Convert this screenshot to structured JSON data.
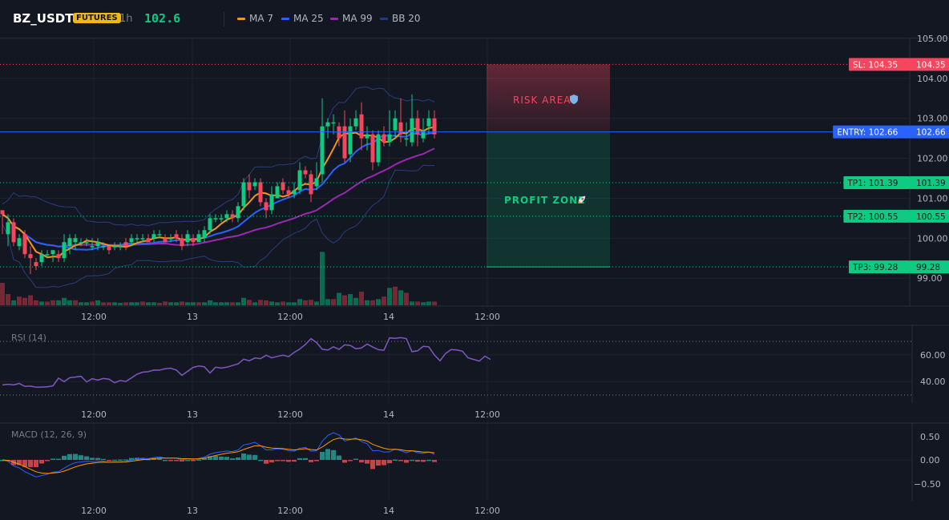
{
  "header": {
    "symbol": "BZ_USDT",
    "badge": "FUTURES",
    "timeframe": "1h",
    "price": "102.6",
    "legend": [
      {
        "label": "MA 7",
        "color": "#f7931a"
      },
      {
        "label": "MA 25",
        "color": "#2962ff"
      },
      {
        "label": "MA 99",
        "color": "#9c27b0"
      },
      {
        "label": "BB 20",
        "color": "#1e3a8a"
      }
    ]
  },
  "colors": {
    "up": "#0ecb81",
    "down": "#f6465d",
    "entry": "#2962ff",
    "sl": "#f6465d",
    "tp": "#0ecb81",
    "rsi": "#7e57c2",
    "macd": "#2962ff",
    "signal": "#ff9800"
  },
  "price_axis": {
    "ticks": [
      "105.00",
      "104.00",
      "103.00",
      "102.00",
      "101.00",
      "100.00",
      "99.00"
    ],
    "min": 98.3,
    "max": 105.0
  },
  "time_axis": [
    "12:00",
    "13",
    "12:00",
    "14",
    "12:00"
  ],
  "levels": {
    "sl": {
      "tag": "SL: 104.35",
      "value": "104.35",
      "price": 104.35
    },
    "entry": {
      "tag": "ENTRY: 102.66",
      "value": "102.66",
      "price": 102.66
    },
    "tp1": {
      "tag": "TP1: 101.39",
      "value": "101.39",
      "price": 101.39
    },
    "tp2": {
      "tag": "TP2: 100.55",
      "value": "100.55",
      "price": 100.55
    },
    "tp3": {
      "tag": "TP3: 99.28",
      "value": "99.28",
      "price": 99.28
    }
  },
  "zones": {
    "risk_label": "RISK AREA",
    "risk_icon": "shield-icon",
    "profit_label": "PROFIT ZONE",
    "profit_icon": "rocket-icon"
  },
  "rsi": {
    "label": "RSI (14)",
    "ticks": [
      "60.00",
      "40.00"
    ],
    "upper": 70,
    "lower": 30,
    "values": [
      37.5,
      38.0,
      37.5,
      38.6,
      36.4,
      36.6,
      35.8,
      35.9,
      36.1,
      36.8,
      42.6,
      39.9,
      42.9,
      43.4,
      44.0,
      39.8,
      42.1,
      41.1,
      42.3,
      41.8,
      39.1,
      40.8,
      40.1,
      42.8,
      45.5,
      47.0,
      47.4,
      48.6,
      48.5,
      49.6,
      50.0,
      48.6,
      44.7,
      47.6,
      50.6,
      51.6,
      51.0,
      46.4,
      50.7,
      50.1,
      50.7,
      52.0,
      53.2,
      56.7,
      55.5,
      57.6,
      57.1,
      59.7,
      57.7,
      58.8,
      59.7,
      58.6,
      61.7,
      64.3,
      67.7,
      72.1,
      69.1,
      64.1,
      63.5,
      65.9,
      64.0,
      67.4,
      67.0,
      64.5,
      65.1,
      68.0,
      65.8,
      63.8,
      63.4,
      72.6,
      72.3,
      72.8,
      72.0,
      62.3,
      63.0,
      66.3,
      66.0,
      59.8,
      55.6,
      61.0,
      63.9,
      63.6,
      62.6,
      57.7,
      56.5,
      55.3,
      59.0,
      56.5
    ]
  },
  "macd": {
    "label": "MACD (12, 26, 9)",
    "ticks": [
      "0.50",
      "0.00",
      "−0.50"
    ]
  },
  "candles": [
    [
      100.7,
      100.6,
      100.7,
      100.1
    ],
    [
      100.1,
      100.4,
      100.6,
      99.8
    ],
    [
      100.4,
      99.9,
      100.5,
      99.8
    ],
    [
      99.8,
      100.0,
      100.1,
      99.7
    ],
    [
      100.1,
      99.6,
      100.2,
      99.5
    ],
    [
      99.6,
      99.5,
      99.8,
      99.1
    ],
    [
      99.4,
      99.3,
      99.5,
      99.2
    ],
    [
      99.4,
      99.6,
      99.7,
      99.3
    ],
    [
      99.6,
      99.6,
      99.7,
      99.5
    ],
    [
      99.6,
      99.7,
      99.7,
      99.4
    ],
    [
      99.6,
      99.5,
      99.7,
      99.4
    ],
    [
      99.5,
      99.9,
      100.1,
      99.4
    ],
    [
      99.8,
      100.0,
      100.1,
      99.6
    ],
    [
      99.9,
      100.0,
      100.1,
      99.7
    ],
    [
      99.9,
      99.9,
      100.0,
      99.8
    ],
    [
      99.9,
      99.9,
      100.0,
      99.8
    ],
    [
      99.8,
      99.8,
      100.0,
      99.7
    ],
    [
      99.8,
      99.9,
      100.0,
      99.7
    ],
    [
      99.8,
      99.8,
      99.9,
      99.7
    ],
    [
      99.8,
      99.7,
      99.8,
      99.6
    ],
    [
      99.8,
      99.8,
      99.9,
      99.7
    ],
    [
      99.8,
      99.8,
      99.9,
      99.7
    ],
    [
      99.9,
      99.8,
      100.0,
      99.7
    ],
    [
      99.9,
      100.0,
      100.1,
      99.8
    ],
    [
      100.0,
      100.0,
      100.1,
      99.9
    ],
    [
      100.0,
      100.0,
      100.1,
      99.9
    ],
    [
      100.0,
      99.9,
      100.1,
      99.9
    ],
    [
      100.0,
      100.1,
      100.2,
      99.9
    ],
    [
      100.1,
      100.1,
      100.2,
      100.0
    ],
    [
      100.0,
      99.9,
      100.1,
      99.9
    ],
    [
      100.0,
      100.0,
      100.1,
      99.9
    ],
    [
      100.1,
      100.0,
      100.2,
      99.9
    ],
    [
      100.0,
      99.8,
      100.1,
      99.7
    ],
    [
      99.9,
      100.1,
      100.2,
      99.8
    ],
    [
      100.0,
      99.9,
      100.1,
      99.8
    ],
    [
      99.9,
      100.1,
      100.2,
      99.9
    ],
    [
      100.0,
      100.2,
      100.3,
      99.9
    ],
    [
      100.2,
      100.5,
      100.6,
      100.1
    ],
    [
      100.5,
      100.5,
      100.6,
      100.4
    ],
    [
      100.5,
      100.5,
      100.6,
      100.4
    ],
    [
      100.5,
      100.6,
      100.7,
      100.4
    ],
    [
      100.6,
      100.5,
      100.7,
      100.4
    ],
    [
      100.5,
      100.8,
      100.9,
      100.4
    ],
    [
      100.8,
      101.4,
      101.5,
      100.7
    ],
    [
      101.4,
      101.2,
      101.6,
      101.0
    ],
    [
      101.3,
      101.4,
      101.5,
      101.2
    ],
    [
      101.4,
      100.9,
      101.5,
      100.8
    ],
    [
      100.9,
      100.7,
      101.0,
      100.5
    ],
    [
      100.7,
      101.1,
      101.3,
      100.6
    ],
    [
      101.0,
      101.3,
      101.4,
      101.0
    ],
    [
      101.4,
      101.2,
      101.5,
      101.1
    ],
    [
      101.2,
      101.1,
      101.3,
      101.0
    ],
    [
      101.1,
      101.2,
      101.4,
      101.0
    ],
    [
      101.2,
      101.7,
      101.9,
      101.1
    ],
    [
      101.7,
      101.6,
      101.8,
      101.5
    ],
    [
      101.6,
      101.1,
      101.7,
      100.9
    ],
    [
      101.3,
      101.5,
      101.9,
      101.2
    ],
    [
      101.6,
      102.8,
      103.5,
      101.4
    ],
    [
      102.8,
      102.9,
      103.0,
      102.5
    ],
    [
      102.9,
      102.9,
      103.1,
      102.6
    ],
    [
      102.8,
      102.5,
      102.9,
      102.3
    ],
    [
      102.8,
      102.0,
      103.2,
      101.9
    ],
    [
      102.1,
      102.8,
      103.0,
      101.9
    ],
    [
      102.8,
      103.0,
      103.2,
      102.7
    ],
    [
      103.1,
      102.5,
      103.4,
      102.2
    ],
    [
      102.5,
      102.6,
      102.8,
      102.2
    ],
    [
      102.6,
      101.9,
      102.7,
      101.7
    ],
    [
      101.9,
      102.6,
      102.7,
      101.8
    ],
    [
      102.6,
      102.4,
      102.8,
      102.3
    ],
    [
      102.4,
      102.6,
      103.2,
      102.3
    ],
    [
      102.7,
      103.0,
      103.2,
      102.5
    ],
    [
      102.9,
      102.6,
      103.5,
      102.4
    ],
    [
      102.5,
      102.5,
      102.9,
      102.3
    ],
    [
      102.4,
      103.0,
      103.6,
      102.3
    ],
    [
      103.0,
      102.6,
      103.2,
      102.3
    ],
    [
      102.5,
      102.7,
      103.0,
      102.4
    ],
    [
      102.8,
      103.0,
      103.2,
      102.6
    ],
    [
      103.0,
      102.6,
      103.2,
      102.5
    ]
  ],
  "volume": [
    [
      "d",
      0.9
    ],
    [
      "d",
      0.45
    ],
    [
      "u",
      0.2
    ],
    [
      "d",
      0.35
    ],
    [
      "d",
      0.3
    ],
    [
      "d",
      0.4
    ],
    [
      "d",
      0.2
    ],
    [
      "u",
      0.15
    ],
    [
      "d",
      0.15
    ],
    [
      "d",
      0.2
    ],
    [
      "u",
      0.2
    ],
    [
      "u",
      0.3
    ],
    [
      "u",
      0.2
    ],
    [
      "d",
      0.2
    ],
    [
      "u",
      0.12
    ],
    [
      "u",
      0.12
    ],
    [
      "d",
      0.15
    ],
    [
      "u",
      0.2
    ],
    [
      "d",
      0.12
    ],
    [
      "d",
      0.12
    ],
    [
      "u",
      0.12
    ],
    [
      "u",
      0.1
    ],
    [
      "d",
      0.12
    ],
    [
      "u",
      0.12
    ],
    [
      "u",
      0.12
    ],
    [
      "d",
      0.15
    ],
    [
      "u",
      0.12
    ],
    [
      "u",
      0.12
    ],
    [
      "d",
      0.1
    ],
    [
      "d",
      0.15
    ],
    [
      "u",
      0.12
    ],
    [
      "u",
      0.12
    ],
    [
      "d",
      0.15
    ],
    [
      "u",
      0.12
    ],
    [
      "u",
      0.12
    ],
    [
      "d",
      0.12
    ],
    [
      "u",
      0.12
    ],
    [
      "u",
      0.2
    ],
    [
      "u",
      0.12
    ],
    [
      "u",
      0.12
    ],
    [
      "u",
      0.12
    ],
    [
      "d",
      0.12
    ],
    [
      "u",
      0.12
    ],
    [
      "u",
      0.3
    ],
    [
      "d",
      0.22
    ],
    [
      "u",
      0.12
    ],
    [
      "d",
      0.22
    ],
    [
      "d",
      0.2
    ],
    [
      "u",
      0.15
    ],
    [
      "u",
      0.12
    ],
    [
      "d",
      0.15
    ],
    [
      "u",
      0.12
    ],
    [
      "u",
      0.12
    ],
    [
      "u",
      0.25
    ],
    [
      "d",
      0.2
    ],
    [
      "d",
      0.22
    ],
    [
      "u",
      0.15
    ],
    [
      "u",
      2.15
    ],
    [
      "u",
      0.25
    ],
    [
      "d",
      0.25
    ],
    [
      "u",
      0.5
    ],
    [
      "d",
      0.4
    ],
    [
      "u",
      0.45
    ],
    [
      "u",
      0.3
    ],
    [
      "d",
      0.55
    ],
    [
      "u",
      0.2
    ],
    [
      "d",
      0.2
    ],
    [
      "u",
      0.25
    ],
    [
      "d",
      0.35
    ],
    [
      "u",
      0.7
    ],
    [
      "d",
      0.75
    ],
    [
      "u",
      0.6
    ],
    [
      "d",
      0.5
    ],
    [
      "u",
      0.15
    ],
    [
      "d",
      0.15
    ],
    [
      "u",
      0.12
    ],
    [
      "u",
      0.15
    ],
    [
      "d",
      0.15
    ]
  ]
}
